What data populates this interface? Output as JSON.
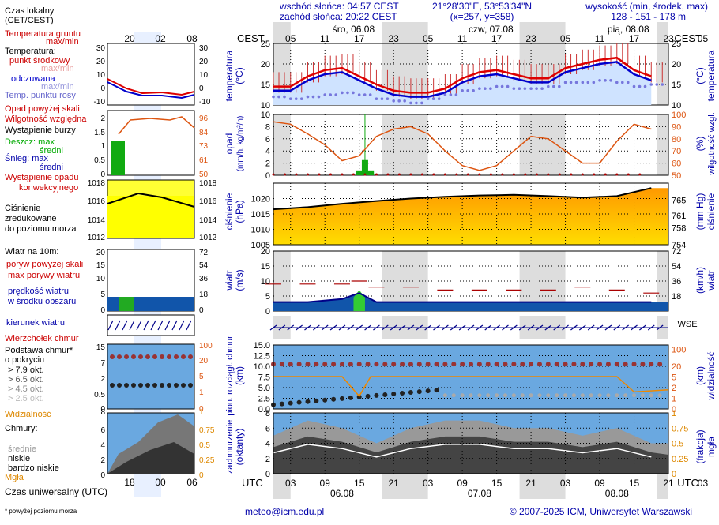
{
  "header": {
    "sunrise": "wschód słońca: 04:57 CEST",
    "sunset": "zachód słońca: 20:22 CEST",
    "coords": "21°28'30\"E, 53°53'34\"N",
    "grid": "(x=257, y=358)",
    "alt_label": "wysokość (min, środek, max)",
    "alt_values": "128 - 151 - 178 m"
  },
  "time": {
    "cest_label": "CEST",
    "utc_label": "UTC",
    "top_hours": [
      "05",
      "11",
      "17",
      "23",
      "05",
      "11",
      "17",
      "23",
      "05",
      "11",
      "17",
      "23",
      "05"
    ],
    "days_top": [
      "śro, 06.08",
      "czw, 07.08",
      "pią, 08.08"
    ],
    "bottom_hours": [
      "03",
      "09",
      "15",
      "21",
      "03",
      "09",
      "15",
      "21",
      "03",
      "09",
      "15",
      "21",
      "03"
    ],
    "days_bottom": [
      "06.08",
      "07.08",
      "08.08"
    ]
  },
  "legend": {
    "local_time": "Czas lokalny",
    "local_time_sub": "(CET/CEST)",
    "local_hours": [
      "20",
      "02",
      "08"
    ],
    "soil_temp": "Temperatura gruntu",
    "soil_temp_sub": "max/min",
    "temperature": "Temperatura:",
    "temp_mid": "punkt środkowy",
    "temp_maxmin": "max/min",
    "temp_felt": "odczuwana",
    "temp_felt_maxmin": "max/min",
    "dew_point": "Temp. punktu rosy",
    "precip_threshold": "Opad powyżej skali",
    "humidity": "Wilgotność względna",
    "storm": "Wystąpienie burzy",
    "rain_max": "Deszcz: max",
    "rain_mean": "średni",
    "snow_max": "Śnieg:   max",
    "snow_mean": "średni",
    "convective": "Wystąpienie opadu",
    "convective2": "konwekcyjnego",
    "pressure_1": "Ciśnienie",
    "pressure_2": "zredukowane",
    "pressure_3": "do poziomu morza",
    "wind_10m": "Wiatr na 10m:",
    "gust_over": "poryw powyżej skali",
    "gust_max": "max porywy wiatru",
    "wind_mean": "prędkość wiatru",
    "wind_mean2": "w środku obszaru",
    "wind_dir": "kierunek wiatru",
    "cloud_top": "Wierzchołek chmur",
    "cloud_base": "Podstawa chmur*",
    "cloud_base2": "o pokryciu",
    "okt_79": "> 7.9 okt.",
    "okt_65": "> 6.5 okt.",
    "okt_45": "> 4.5 okt.",
    "okt_25": "> 2.5 okt.",
    "okt_01": "> 0.1 okt.",
    "visibility": "Widzialność",
    "clouds": "Chmury:",
    "cl_high": "wysokie",
    "cl_mid": "średnie",
    "cl_low": "niskie",
    "cl_vlow": "bardzo niskie",
    "fog": "Mgła",
    "utc_time": "Czas uniwersalny (UTC)",
    "utc_hours": [
      "18",
      "00",
      "06"
    ],
    "footnote": "* powyżej poziomu morza"
  },
  "footer": {
    "email": "meteo@icm.edu.pl",
    "copyright": "© 2007-2025 ICM, Uniwersytet Warszawski"
  },
  "panels": {
    "temp_left": "temperatura",
    "temp_left_unit": "(°C)",
    "temp_right": "temperatura",
    "temp_right_unit": "(°C)",
    "precip_left": "opad",
    "precip_left_unit": "(mm/h, kg/m²/h)",
    "precip_right": "wilgotność wzgl.",
    "precip_right_unit": "(%)",
    "press_left": "ciśnienie",
    "press_left_unit": "(hPa)",
    "press_right": "ciśnienie",
    "press_right_unit": "(mm Hg)",
    "wind_left": "wiatr",
    "wind_left_unit": "(m/s)",
    "wind_right": "wiatr",
    "wind_right_unit": "(km/h)",
    "cloud_left": "pion. rozciągł. chmur",
    "cloud_left_unit": "(km)",
    "cloud_right": "widzialność",
    "cloud_right_unit": "(km)",
    "cover_left": "zachmurzenie",
    "cover_left_unit": "(oktanty)",
    "cover_right": "mgła",
    "cover_right_unit": "(frakcja)"
  },
  "chart_data": [
    {
      "type": "line",
      "name": "temperature",
      "title": "temperatura (°C)",
      "x_hours_utc": [
        0,
        3,
        6,
        9,
        12,
        15,
        18,
        21,
        24,
        27,
        30,
        33,
        36,
        39,
        42,
        45,
        48,
        51,
        54,
        57,
        60,
        63,
        66
      ],
      "series": [
        {
          "name": "punkt środkowy",
          "values": [
            14.5,
            14.5,
            17,
            18.5,
            19,
            17,
            15,
            13.5,
            13,
            13,
            14,
            16.5,
            18,
            18.5,
            17.5,
            16.5,
            16.5,
            19,
            20,
            21,
            21.5,
            18.5,
            17
          ]
        },
        {
          "name": "odczuwana",
          "values": [
            13.5,
            13.5,
            16,
            17.5,
            18,
            16,
            14,
            12.5,
            12,
            12,
            13,
            15.5,
            17,
            17.5,
            16.5,
            15.5,
            15.5,
            18,
            19,
            20,
            20.5,
            17.5,
            16
          ]
        },
        {
          "name": "punkt rosy",
          "values": [
            12,
            11.5,
            12,
            12.5,
            13,
            12.5,
            11.5,
            11,
            10.5,
            11.5,
            12.5,
            13.5,
            14,
            14.5,
            14,
            14,
            14.5,
            15.5,
            15.5,
            16,
            15.5,
            14.5,
            15
          ]
        }
      ],
      "ylim": [
        10,
        25
      ]
    },
    {
      "type": "bar",
      "name": "precipitation",
      "title": "opad (mm/h, kg/m²/h)",
      "x_hours_utc": [
        15,
        16,
        17
      ],
      "values": [
        0.8,
        2.5,
        0.8
      ],
      "ylim": [
        0,
        10
      ],
      "humidity": {
        "x_hours_utc": [
          0,
          3,
          6,
          9,
          12,
          15,
          18,
          21,
          24,
          27,
          30,
          33,
          36,
          39,
          42,
          45,
          48,
          51,
          54,
          57,
          60,
          63,
          66
        ],
        "values": [
          94,
          92,
          84,
          75,
          62,
          66,
          82,
          88,
          90,
          84,
          70,
          58,
          54,
          58,
          70,
          82,
          80,
          70,
          60,
          60,
          78,
          92,
          88
        ],
        "ylim": [
          50,
          100
        ]
      }
    },
    {
      "type": "area",
      "name": "pressure",
      "title": "ciśnienie (hPa)",
      "x_hours_utc": [
        0,
        6,
        12,
        18,
        24,
        30,
        36,
        42,
        48,
        54,
        60,
        66
      ],
      "values": [
        1016.5,
        1017.2,
        1018.3,
        1019.2,
        1020.0,
        1020.6,
        1021.0,
        1021.2,
        1020.8,
        1020.3,
        1020.8,
        1023.4
      ],
      "ylim": [
        1005,
        1025
      ]
    },
    {
      "type": "area",
      "name": "wind",
      "title": "wiatr (m/s)",
      "x_hours_utc": [
        0,
        6,
        12,
        15,
        18,
        24,
        30,
        36,
        42,
        48,
        54,
        60,
        66
      ],
      "mean": [
        3,
        3,
        4,
        6,
        3,
        3,
        3,
        3,
        3,
        3,
        3,
        3,
        3
      ],
      "gust": [
        9,
        9,
        9,
        10,
        8,
        8,
        7,
        7,
        7,
        7,
        8,
        7,
        6
      ],
      "ylim": [
        0,
        20
      ]
    },
    {
      "type": "scatter",
      "name": "clouds",
      "title": "pion. rozciągł. chmur (km)",
      "visibility_km": [
        5,
        5,
        5,
        5,
        10,
        10,
        10,
        10,
        10,
        10,
        10,
        5,
        5
      ],
      "ylim": [
        0,
        15
      ]
    },
    {
      "type": "area",
      "name": "cloud_cover",
      "title": "zachmurzenie (oktanty)",
      "x_hours_utc": [
        0,
        6,
        12,
        18,
        24,
        30,
        36,
        42,
        48,
        54,
        60,
        66
      ],
      "values": [
        5,
        7,
        6,
        4,
        6,
        7,
        7,
        6,
        6,
        5,
        6,
        4
      ],
      "ylim": [
        0,
        8
      ]
    }
  ]
}
